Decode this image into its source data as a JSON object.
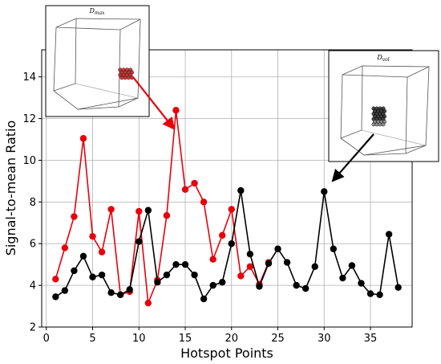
{
  "chart_data": {
    "type": "line",
    "title": "",
    "xlabel": "Hotspot Points",
    "ylabel": "Signal-to-mean Ratio",
    "xlim": [
      -0.5,
      39.5
    ],
    "ylim": [
      2,
      15.3
    ],
    "x_ticks": [
      0,
      5,
      10,
      15,
      20,
      25,
      30,
      35
    ],
    "y_ticks": [
      2,
      4,
      6,
      8,
      10,
      12,
      14
    ],
    "grid": true,
    "legend": "none",
    "series": [
      {
        "color": "#e8000b",
        "x": [
          1,
          2,
          3,
          4,
          5,
          6,
          7,
          8,
          9,
          10,
          11,
          12,
          13,
          14,
          15,
          16,
          17,
          18,
          19,
          20,
          21,
          22,
          23,
          24
        ],
        "values": [
          4.3,
          5.8,
          7.3,
          11.05,
          6.35,
          5.6,
          7.65,
          3.55,
          3.7,
          7.55,
          3.15,
          4.25,
          7.35,
          12.4,
          8.6,
          8.9,
          8.0,
          5.25,
          6.4,
          7.65,
          4.45,
          4.9,
          4.05,
          5.1
        ]
      },
      {
        "color": "#000000",
        "x": [
          1,
          2,
          3,
          4,
          5,
          6,
          7,
          8,
          9,
          10,
          11,
          12,
          13,
          14,
          15,
          16,
          17,
          18,
          19,
          20,
          21,
          22,
          23,
          24,
          25,
          26,
          27,
          28,
          29,
          30,
          31,
          32,
          33,
          34,
          35,
          36,
          37,
          38
        ],
        "values": [
          3.45,
          3.75,
          4.7,
          5.4,
          4.4,
          4.5,
          3.65,
          3.55,
          3.8,
          6.1,
          7.6,
          4.15,
          4.5,
          5.0,
          5.0,
          4.5,
          3.35,
          4.0,
          4.15,
          6.0,
          8.55,
          5.5,
          3.95,
          5.05,
          5.75,
          5.1,
          4.0,
          3.85,
          4.9,
          8.5,
          5.75,
          4.35,
          4.95,
          4.1,
          3.6,
          3.55,
          6.45,
          3.9
        ]
      }
    ],
    "insets": [
      {
        "title": "D_max",
        "title_main": "D",
        "title_sub": "max",
        "marker_color": "#b22222",
        "arrow_color": "#e8000b",
        "arrow_target": [
          13.8,
          11.5
        ]
      },
      {
        "title": "D_vol",
        "title_main": "D",
        "title_sub": "vol",
        "marker_color": "#222222",
        "arrow_color": "#000000",
        "arrow_target": [
          30.9,
          9.0
        ]
      }
    ]
  }
}
